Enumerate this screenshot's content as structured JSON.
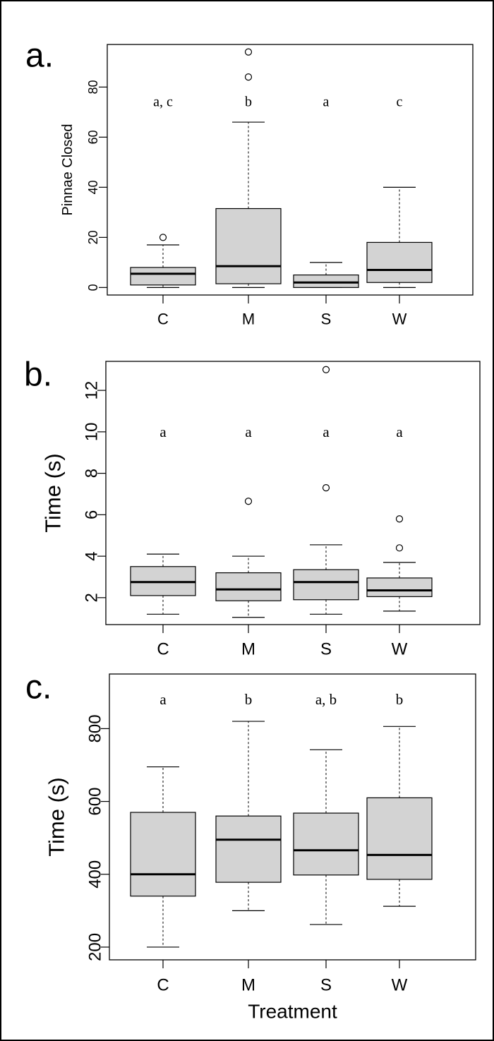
{
  "chart_data": [
    {
      "type": "box",
      "panel_label": "a.",
      "ylabel": "Pinnae Closed",
      "xlabel": "",
      "categories": [
        "C",
        "M",
        "S",
        "W"
      ],
      "yticks": [
        0,
        20,
        40,
        60,
        80
      ],
      "ylim": [
        -3,
        97
      ],
      "series": [
        {
          "category": "C",
          "whisker_low": 0,
          "q1": 1,
          "median": 5.5,
          "q3": 8,
          "whisker_high": 17,
          "outliers": [
            20
          ]
        },
        {
          "category": "M",
          "whisker_low": 0,
          "q1": 1.5,
          "median": 8.5,
          "q3": 31.5,
          "whisker_high": 66,
          "outliers": [
            84,
            94
          ]
        },
        {
          "category": "S",
          "whisker_low": 0,
          "q1": 0,
          "median": 2,
          "q3": 5,
          "whisker_high": 10,
          "outliers": []
        },
        {
          "category": "W",
          "whisker_low": 0,
          "q1": 2,
          "median": 7,
          "q3": 18,
          "whisker_high": 40,
          "outliers": []
        }
      ],
      "significance": {
        "y": 74,
        "labels": [
          "a, c",
          "b",
          "a",
          "c"
        ]
      }
    },
    {
      "type": "box",
      "panel_label": "b.",
      "ylabel": "Time (s)",
      "xlabel": "",
      "categories": [
        "C",
        "M",
        "S",
        "W"
      ],
      "yticks": [
        2,
        4,
        6,
        8,
        10,
        12
      ],
      "ylim": [
        0.7,
        13.4
      ],
      "series": [
        {
          "category": "C",
          "whisker_low": 1.2,
          "q1": 2.1,
          "median": 2.75,
          "q3": 3.5,
          "whisker_high": 4.1,
          "outliers": []
        },
        {
          "category": "M",
          "whisker_low": 1.05,
          "q1": 1.85,
          "median": 2.4,
          "q3": 3.2,
          "whisker_high": 4.0,
          "outliers": [
            6.65
          ]
        },
        {
          "category": "S",
          "whisker_low": 1.2,
          "q1": 1.9,
          "median": 2.75,
          "q3": 3.35,
          "whisker_high": 4.55,
          "outliers": [
            7.3,
            13.0
          ]
        },
        {
          "category": "W",
          "whisker_low": 1.35,
          "q1": 2.05,
          "median": 2.35,
          "q3": 2.95,
          "whisker_high": 3.7,
          "outliers": [
            4.4,
            5.8
          ]
        }
      ],
      "significance": {
        "y": 10,
        "labels": [
          "a",
          "a",
          "a",
          "a"
        ]
      }
    },
    {
      "type": "box",
      "panel_label": "c.",
      "ylabel": "Time (s)",
      "xlabel": "Treatment",
      "categories": [
        "C",
        "M",
        "S",
        "W"
      ],
      "yticks": [
        200,
        400,
        600,
        800
      ],
      "ylim": [
        165,
        950
      ],
      "series": [
        {
          "category": "C",
          "whisker_low": 200,
          "q1": 340,
          "median": 400,
          "q3": 570,
          "whisker_high": 695,
          "outliers": []
        },
        {
          "category": "M",
          "whisker_low": 300,
          "q1": 378,
          "median": 495,
          "q3": 560,
          "whisker_high": 820,
          "outliers": []
        },
        {
          "category": "S",
          "whisker_low": 262,
          "q1": 398,
          "median": 466,
          "q3": 568,
          "whisker_high": 742,
          "outliers": []
        },
        {
          "category": "W",
          "whisker_low": 312,
          "q1": 386,
          "median": 453,
          "q3": 610,
          "whisker_high": 806,
          "outliers": []
        }
      ],
      "significance": {
        "y": 880,
        "labels": [
          "a",
          "b",
          "a, b",
          "b"
        ]
      }
    }
  ],
  "colors": {
    "box_fill": "#d3d3d3",
    "line": "#000000",
    "background": "#ffffff"
  }
}
